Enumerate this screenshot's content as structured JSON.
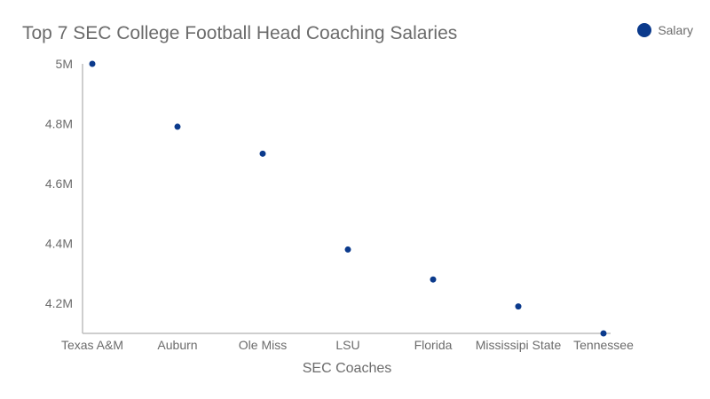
{
  "chart_data": {
    "type": "scatter",
    "title": "Top 7 SEC College Football Head Coaching Salaries",
    "xlabel": "SEC Coaches",
    "ylabel": "",
    "categories": [
      "Texas A&M",
      "Auburn",
      "Ole Miss",
      "LSU",
      "Florida",
      "Mississipi State",
      "Tennessee"
    ],
    "series": [
      {
        "name": "Salary",
        "values": [
          5000000,
          4790000,
          4700000,
          4380000,
          4280000,
          4190000,
          4100000
        ]
      }
    ],
    "yticks": [
      {
        "value": 4200000,
        "label": "4.2M"
      },
      {
        "value": 4400000,
        "label": "4.4M"
      },
      {
        "value": 4600000,
        "label": "4.6M"
      },
      {
        "value": 4800000,
        "label": "4.8M"
      },
      {
        "value": 5000000,
        "label": "5M"
      }
    ],
    "ylim": [
      4100000,
      5000000
    ],
    "grid": false,
    "legend_position": "top-right",
    "colors": {
      "series": "#0b3a8c",
      "axis": "#bdbdbd",
      "text": "#6b6b6b"
    }
  }
}
